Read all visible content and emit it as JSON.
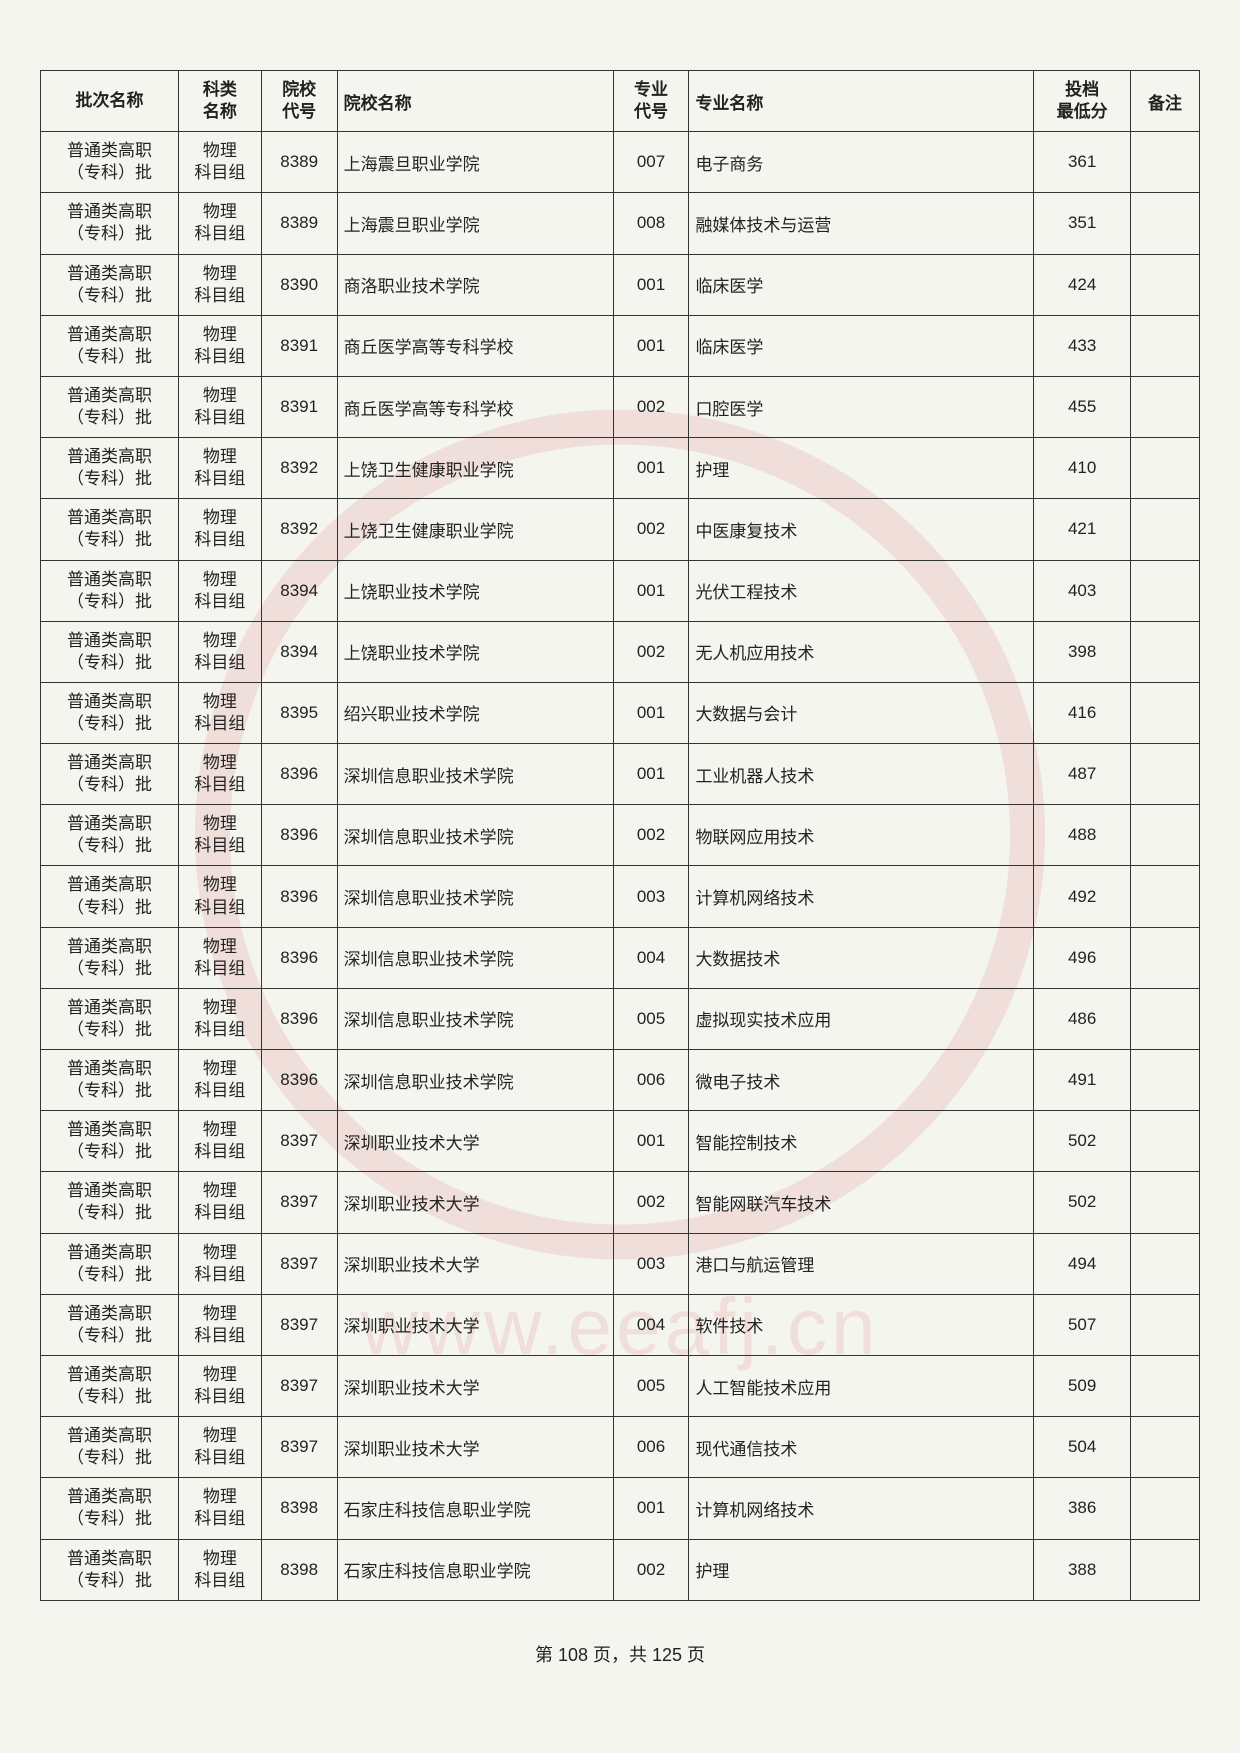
{
  "table": {
    "headers": {
      "batch": "批次名称",
      "subject": "科类\n名称",
      "school_code": "院校\n代号",
      "school_name": "院校名称",
      "major_code": "专业\n代号",
      "major_name": "专业名称",
      "score": "投档\n最低分",
      "remark": "备注"
    },
    "rows": [
      {
        "batch": "普通类高职\n（专科）批",
        "subject": "物理\n科目组",
        "school_code": "8389",
        "school_name": "上海震旦职业学院",
        "major_code": "007",
        "major_name": "电子商务",
        "score": "361",
        "remark": ""
      },
      {
        "batch": "普通类高职\n（专科）批",
        "subject": "物理\n科目组",
        "school_code": "8389",
        "school_name": "上海震旦职业学院",
        "major_code": "008",
        "major_name": "融媒体技术与运营",
        "score": "351",
        "remark": ""
      },
      {
        "batch": "普通类高职\n（专科）批",
        "subject": "物理\n科目组",
        "school_code": "8390",
        "school_name": "商洛职业技术学院",
        "major_code": "001",
        "major_name": "临床医学",
        "score": "424",
        "remark": ""
      },
      {
        "batch": "普通类高职\n（专科）批",
        "subject": "物理\n科目组",
        "school_code": "8391",
        "school_name": "商丘医学高等专科学校",
        "major_code": "001",
        "major_name": "临床医学",
        "score": "433",
        "remark": ""
      },
      {
        "batch": "普通类高职\n（专科）批",
        "subject": "物理\n科目组",
        "school_code": "8391",
        "school_name": "商丘医学高等专科学校",
        "major_code": "002",
        "major_name": "口腔医学",
        "score": "455",
        "remark": ""
      },
      {
        "batch": "普通类高职\n（专科）批",
        "subject": "物理\n科目组",
        "school_code": "8392",
        "school_name": "上饶卫生健康职业学院",
        "major_code": "001",
        "major_name": "护理",
        "score": "410",
        "remark": ""
      },
      {
        "batch": "普通类高职\n（专科）批",
        "subject": "物理\n科目组",
        "school_code": "8392",
        "school_name": "上饶卫生健康职业学院",
        "major_code": "002",
        "major_name": "中医康复技术",
        "score": "421",
        "remark": ""
      },
      {
        "batch": "普通类高职\n（专科）批",
        "subject": "物理\n科目组",
        "school_code": "8394",
        "school_name": "上饶职业技术学院",
        "major_code": "001",
        "major_name": "光伏工程技术",
        "score": "403",
        "remark": ""
      },
      {
        "batch": "普通类高职\n（专科）批",
        "subject": "物理\n科目组",
        "school_code": "8394",
        "school_name": "上饶职业技术学院",
        "major_code": "002",
        "major_name": "无人机应用技术",
        "score": "398",
        "remark": ""
      },
      {
        "batch": "普通类高职\n（专科）批",
        "subject": "物理\n科目组",
        "school_code": "8395",
        "school_name": "绍兴职业技术学院",
        "major_code": "001",
        "major_name": "大数据与会计",
        "score": "416",
        "remark": ""
      },
      {
        "batch": "普通类高职\n（专科）批",
        "subject": "物理\n科目组",
        "school_code": "8396",
        "school_name": "深圳信息职业技术学院",
        "major_code": "001",
        "major_name": "工业机器人技术",
        "score": "487",
        "remark": ""
      },
      {
        "batch": "普通类高职\n（专科）批",
        "subject": "物理\n科目组",
        "school_code": "8396",
        "school_name": "深圳信息职业技术学院",
        "major_code": "002",
        "major_name": "物联网应用技术",
        "score": "488",
        "remark": ""
      },
      {
        "batch": "普通类高职\n（专科）批",
        "subject": "物理\n科目组",
        "school_code": "8396",
        "school_name": "深圳信息职业技术学院",
        "major_code": "003",
        "major_name": "计算机网络技术",
        "score": "492",
        "remark": ""
      },
      {
        "batch": "普通类高职\n（专科）批",
        "subject": "物理\n科目组",
        "school_code": "8396",
        "school_name": "深圳信息职业技术学院",
        "major_code": "004",
        "major_name": "大数据技术",
        "score": "496",
        "remark": ""
      },
      {
        "batch": "普通类高职\n（专科）批",
        "subject": "物理\n科目组",
        "school_code": "8396",
        "school_name": "深圳信息职业技术学院",
        "major_code": "005",
        "major_name": "虚拟现实技术应用",
        "score": "486",
        "remark": ""
      },
      {
        "batch": "普通类高职\n（专科）批",
        "subject": "物理\n科目组",
        "school_code": "8396",
        "school_name": "深圳信息职业技术学院",
        "major_code": "006",
        "major_name": "微电子技术",
        "score": "491",
        "remark": ""
      },
      {
        "batch": "普通类高职\n（专科）批",
        "subject": "物理\n科目组",
        "school_code": "8397",
        "school_name": "深圳职业技术大学",
        "major_code": "001",
        "major_name": "智能控制技术",
        "score": "502",
        "remark": ""
      },
      {
        "batch": "普通类高职\n（专科）批",
        "subject": "物理\n科目组",
        "school_code": "8397",
        "school_name": "深圳职业技术大学",
        "major_code": "002",
        "major_name": "智能网联汽车技术",
        "score": "502",
        "remark": ""
      },
      {
        "batch": "普通类高职\n（专科）批",
        "subject": "物理\n科目组",
        "school_code": "8397",
        "school_name": "深圳职业技术大学",
        "major_code": "003",
        "major_name": "港口与航运管理",
        "score": "494",
        "remark": ""
      },
      {
        "batch": "普通类高职\n（专科）批",
        "subject": "物理\n科目组",
        "school_code": "8397",
        "school_name": "深圳职业技术大学",
        "major_code": "004",
        "major_name": "软件技术",
        "score": "507",
        "remark": ""
      },
      {
        "batch": "普通类高职\n（专科）批",
        "subject": "物理\n科目组",
        "school_code": "8397",
        "school_name": "深圳职业技术大学",
        "major_code": "005",
        "major_name": "人工智能技术应用",
        "score": "509",
        "remark": ""
      },
      {
        "batch": "普通类高职\n（专科）批",
        "subject": "物理\n科目组",
        "school_code": "8397",
        "school_name": "深圳职业技术大学",
        "major_code": "006",
        "major_name": "现代通信技术",
        "score": "504",
        "remark": ""
      },
      {
        "batch": "普通类高职\n（专科）批",
        "subject": "物理\n科目组",
        "school_code": "8398",
        "school_name": "石家庄科技信息职业学院",
        "major_code": "001",
        "major_name": "计算机网络技术",
        "score": "386",
        "remark": ""
      },
      {
        "batch": "普通类高职\n（专科）批",
        "subject": "物理\n科目组",
        "school_code": "8398",
        "school_name": "石家庄科技信息职业学院",
        "major_code": "002",
        "major_name": "护理",
        "score": "388",
        "remark": ""
      }
    ]
  },
  "footer": {
    "text": "第 108 页，共 125 页"
  },
  "watermark": {
    "url": "www.eeafj.cn"
  },
  "styling": {
    "page_bg": "#f5f5f0",
    "border_color": "#333333",
    "text_color": "#222222",
    "header_fontsize": 17,
    "body_fontsize": 17,
    "watermark_color": "rgba(200,60,60,0.12)"
  }
}
